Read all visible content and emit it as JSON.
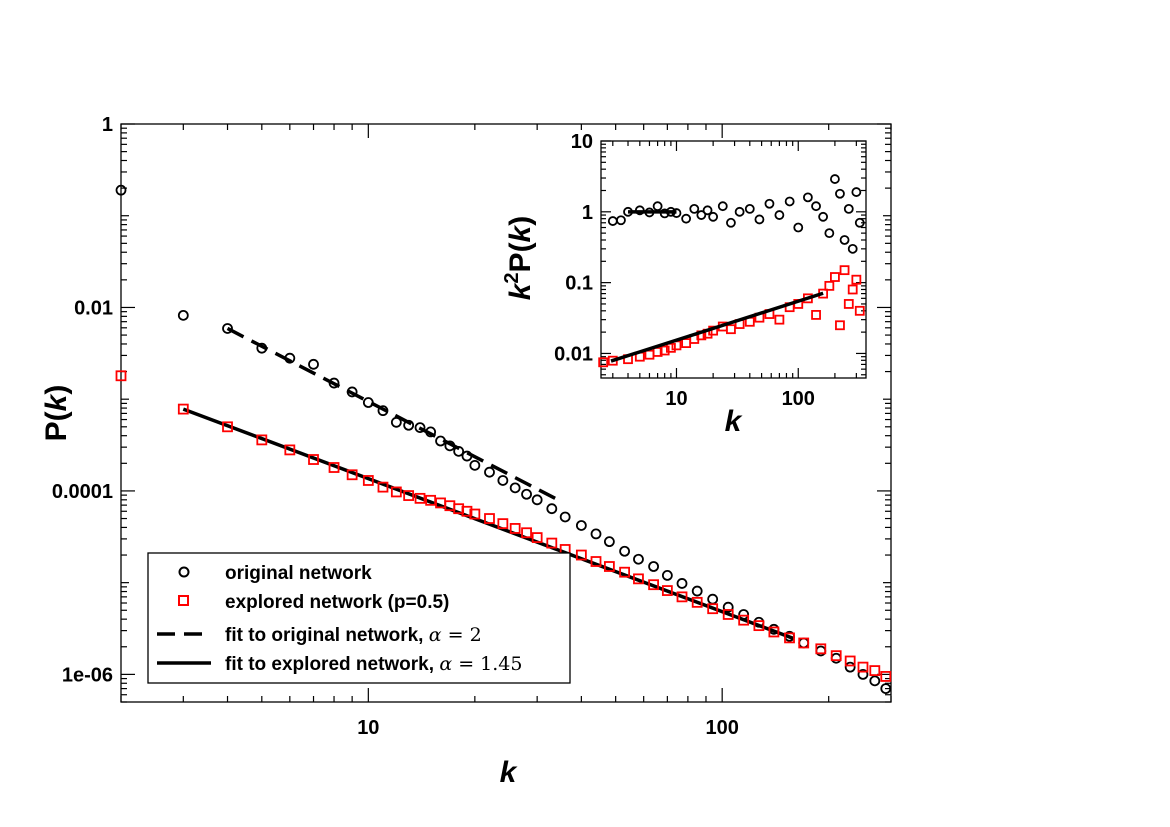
{
  "chart_data": [
    {
      "type": "scatter",
      "scale": "log-log",
      "xlabel": "k",
      "ylabel_prefix": "P(",
      "ylabel_var": "k",
      "ylabel_suffix": ")",
      "xlim": [
        2,
        300
      ],
      "ylim": [
        5e-07,
        1
      ],
      "x_ticks": [
        {
          "value": 10,
          "label": "10"
        },
        {
          "value": 100,
          "label": "100"
        }
      ],
      "y_ticks": [
        {
          "value": 1,
          "label": "1"
        },
        {
          "value": 0.01,
          "label": "0.01"
        },
        {
          "value": 0.0001,
          "label": "0.0001"
        },
        {
          "value": 1e-06,
          "label": "1e-06"
        }
      ],
      "series": [
        {
          "name": "original network",
          "marker": "circle",
          "color": "#000000",
          "x": [
            2,
            3,
            4,
            5,
            6,
            7,
            8,
            9,
            10,
            11,
            12,
            13,
            14,
            15,
            16,
            17,
            18,
            19,
            20,
            22,
            24,
            26,
            28,
            30,
            33,
            36,
            40,
            44,
            48,
            53,
            58,
            64,
            70,
            77,
            85,
            94,
            104,
            115,
            127,
            140,
            155,
            170,
            190,
            210,
            230,
            250,
            270,
            290
          ],
          "y": [
            0.19,
            0.0082,
            0.0059,
            0.0036,
            0.0028,
            0.0024,
            0.0015,
            0.0012,
            0.00092,
            0.00075,
            0.00056,
            0.00052,
            0.00049,
            0.00044,
            0.00035,
            0.00031,
            0.00027,
            0.00024,
            0.00019,
            0.00016,
            0.00013,
            0.000108,
            9.2e-05,
            8e-05,
            6.4e-05,
            5.2e-05,
            4.2e-05,
            3.4e-05,
            2.8e-05,
            2.2e-05,
            1.8e-05,
            1.5e-05,
            1.2e-05,
            9.8e-06,
            8.1e-06,
            6.6e-06,
            5.4e-06,
            4.5e-06,
            3.7e-06,
            3.1e-06,
            2.6e-06,
            2.2e-06,
            1.8e-06,
            1.5e-06,
            1.2e-06,
            1e-06,
            8.5e-07,
            7e-07
          ]
        },
        {
          "name": "explored network (p=0.5)",
          "marker": "square",
          "color": "#ff0000",
          "x": [
            2,
            3,
            4,
            5,
            6,
            7,
            8,
            9,
            10,
            11,
            12,
            13,
            14,
            15,
            16,
            17,
            18,
            19,
            20,
            22,
            24,
            26,
            28,
            30,
            33,
            36,
            40,
            44,
            48,
            53,
            58,
            64,
            70,
            77,
            85,
            94,
            104,
            115,
            127,
            140,
            155,
            170,
            190,
            210,
            230,
            250,
            270,
            290
          ],
          "y": [
            0.0018,
            0.00078,
            0.0005,
            0.00036,
            0.00028,
            0.00022,
            0.00018,
            0.00015,
            0.00013,
            0.00011,
            9.75e-05,
            8.9e-05,
            8.3e-05,
            7.9e-05,
            7.4e-05,
            6.9e-05,
            6.4e-05,
            6e-05,
            5.6e-05,
            5e-05,
            4.4e-05,
            3.9e-05,
            3.5e-05,
            3.1e-05,
            2.7e-05,
            2.3e-05,
            2e-05,
            1.7e-05,
            1.5e-05,
            1.3e-05,
            1.1e-05,
            9.5e-06,
            8.2e-06,
            7e-06,
            6.1e-06,
            5.2e-06,
            4.5e-06,
            3.9e-06,
            3.4e-06,
            2.9e-06,
            2.5e-06,
            2.2e-06,
            1.9e-06,
            1.6e-06,
            1.4e-06,
            1.2e-06,
            1.1e-06,
            9.5e-07
          ]
        }
      ],
      "fits": [
        {
          "name": "fit to original network",
          "alpha_value": "2",
          "style": "dashed",
          "x_range": [
            4,
            35
          ],
          "y_start": 0.0059,
          "slope": -2
        },
        {
          "name": "fit to explored network",
          "alpha_value": "1.45",
          "style": "solid",
          "x_range": [
            3,
            160
          ],
          "y_start": 0.00078,
          "slope": -1.45
        }
      ],
      "legend": {
        "placement": "bottom-left",
        "entries": [
          {
            "label": "original network",
            "symbol": "circle",
            "color": "#000000"
          },
          {
            "label": "explored network (p=0.5)",
            "symbol": "square",
            "color": "#ff0000"
          },
          {
            "label": "fit to original network, ",
            "symbol": "dashed-line",
            "color": "#000000",
            "greek": "α",
            "eq": " = ",
            "value": "2"
          },
          {
            "label": "fit to explored network, ",
            "symbol": "solid-line",
            "color": "#000000",
            "greek": "α",
            "eq": " = ",
            "value": "1.45"
          }
        ]
      }
    },
    {
      "type": "scatter",
      "scale": "log-log",
      "placement": "inset top-right",
      "xlabel": "k",
      "ylabel_prefix": "k",
      "ylabel_sup": "2",
      "ylabel_mid": "P(",
      "ylabel_var": "k",
      "ylabel_suffix": ")",
      "xlim": [
        2.4,
        360
      ],
      "ylim": [
        0.0045,
        10
      ],
      "x_ticks": [
        {
          "value": 10,
          "label": "10"
        },
        {
          "value": 100,
          "label": "100"
        }
      ],
      "y_ticks": [
        {
          "value": 10,
          "label": "10"
        },
        {
          "value": 1,
          "label": "1"
        },
        {
          "value": 0.1,
          "label": "0.1"
        },
        {
          "value": 0.01,
          "label": "0.01"
        }
      ],
      "series": [
        {
          "name": "original network",
          "marker": "circle",
          "color": "#000000",
          "x": [
            3,
            3.5,
            4,
            5,
            6,
            7,
            8,
            9,
            10,
            12,
            14,
            16,
            18,
            20,
            24,
            28,
            33,
            40,
            48,
            58,
            70,
            85,
            100,
            120,
            140,
            160,
            180,
            200,
            220,
            240,
            260,
            280,
            300,
            320
          ],
          "y": [
            0.74,
            0.76,
            1.0,
            1.05,
            0.98,
            1.2,
            0.95,
            1.0,
            0.96,
            0.8,
            1.1,
            0.9,
            1.05,
            0.85,
            1.2,
            0.7,
            1.0,
            1.1,
            0.78,
            1.3,
            0.9,
            1.4,
            0.6,
            1.6,
            1.2,
            0.85,
            0.5,
            2.9,
            1.8,
            0.4,
            1.1,
            0.3,
            1.9,
            0.7
          ]
        },
        {
          "name": "explored network (p=0.5)",
          "marker": "square",
          "color": "#ff0000",
          "x": [
            2.5,
            3,
            4,
            5,
            6,
            7,
            8,
            9,
            10,
            12,
            14,
            16,
            18,
            20,
            24,
            28,
            33,
            40,
            48,
            58,
            70,
            85,
            100,
            120,
            140,
            160,
            180,
            200,
            220,
            240,
            260,
            280,
            300,
            320
          ],
          "y": [
            0.0075,
            0.0079,
            0.0083,
            0.009,
            0.0096,
            0.0105,
            0.011,
            0.012,
            0.013,
            0.014,
            0.016,
            0.018,
            0.019,
            0.021,
            0.024,
            0.022,
            0.026,
            0.028,
            0.032,
            0.036,
            0.03,
            0.045,
            0.05,
            0.06,
            0.035,
            0.07,
            0.09,
            0.12,
            0.025,
            0.15,
            0.05,
            0.08,
            0.11,
            0.04
          ]
        }
      ],
      "fits": [
        {
          "name": "fit original",
          "style": "solid",
          "x_range": [
            4,
            10
          ],
          "y_start": 1.0,
          "slope": 0
        },
        {
          "name": "fit explored",
          "style": "solid",
          "x_range": [
            2.9,
            160
          ],
          "y_start": 0.0078,
          "slope": 0.55
        }
      ]
    }
  ]
}
